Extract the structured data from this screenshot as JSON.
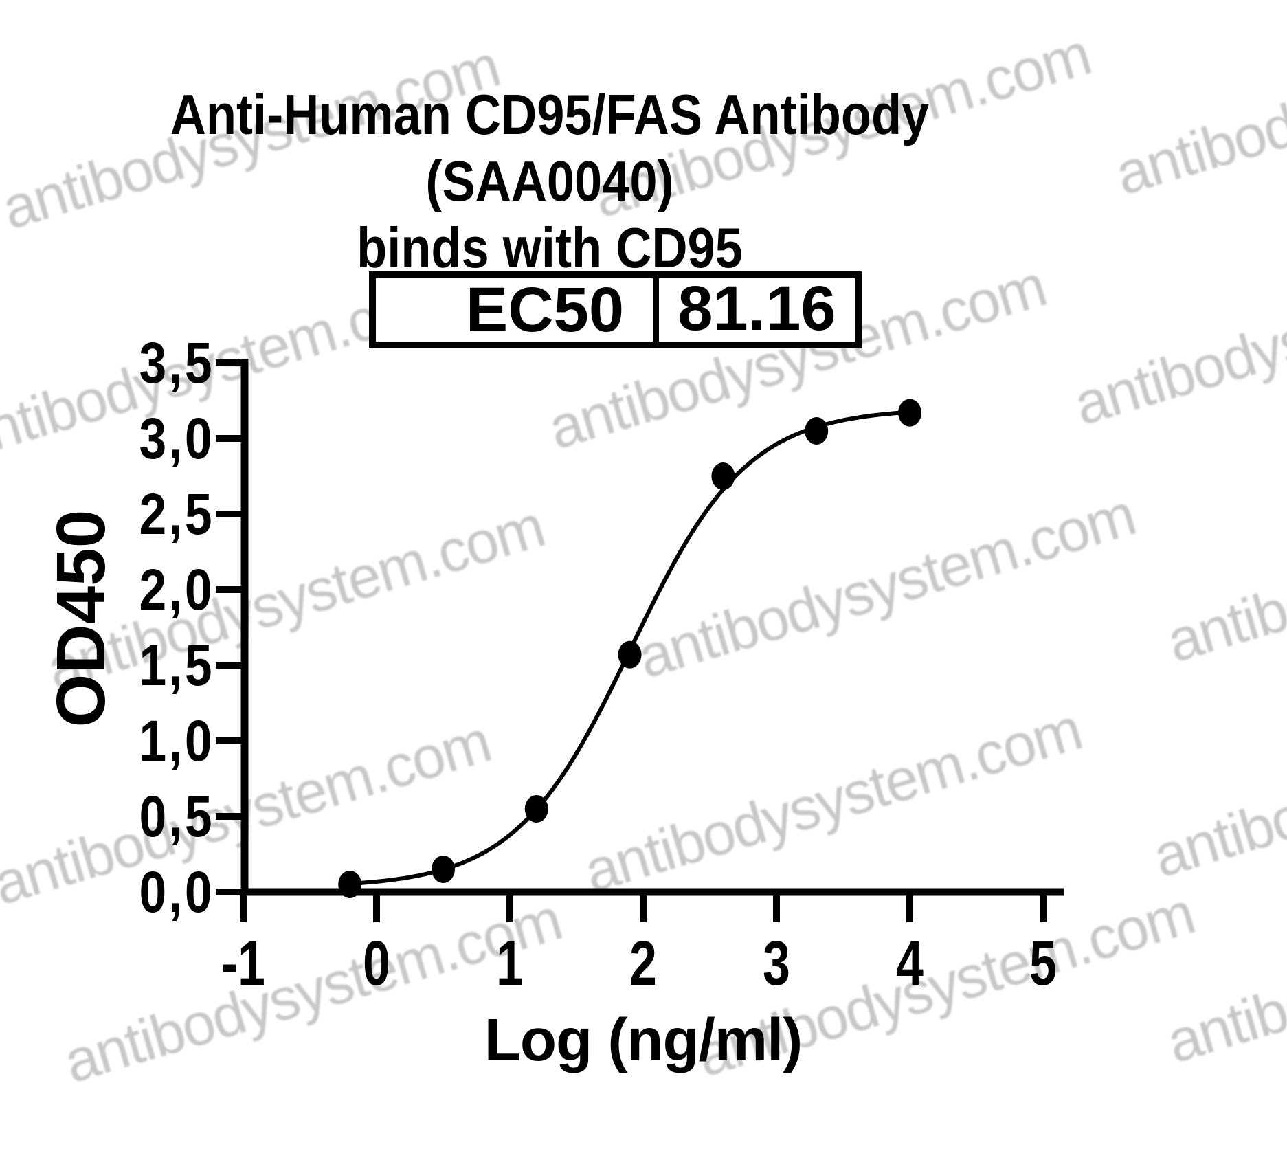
{
  "title": {
    "line1": "Anti-Human CD95/FAS Antibody (SAA0040)",
    "line2": "binds with CD95"
  },
  "watermark": {
    "text": "antibodysystem.com",
    "color": "#c7c7c7"
  },
  "chart_data": {
    "type": "scatter",
    "title": "Anti-Human CD95/FAS Antibody (SAA0040) binds with CD95",
    "xlabel": "Log (ng/ml)",
    "ylabel": "OD450",
    "xlim": [
      -1,
      5
    ],
    "ylim": [
      0.0,
      3.5
    ],
    "xticks": [
      -1,
      0,
      1,
      2,
      3,
      4,
      5
    ],
    "xtick_labels": [
      "-1",
      "0",
      "1",
      "2",
      "3",
      "4",
      "5"
    ],
    "yticks": [
      0.0,
      0.5,
      1.0,
      1.5,
      2.0,
      2.5,
      3.0,
      3.5
    ],
    "ytick_labels": [
      "0,0",
      "0,5",
      "1,0",
      "1,5",
      "2,0",
      "2,5",
      "3,0",
      "3,5"
    ],
    "grid": false,
    "legend_position": "none",
    "series": [
      {
        "x": [
          -0.2,
          0.5,
          1.2,
          1.9,
          2.6,
          3.3,
          4.0
        ],
        "y": [
          0.05,
          0.15,
          0.55,
          1.57,
          2.75,
          3.05,
          3.17
        ]
      }
    ],
    "fit": {
      "model": "4PL sigmoidal dose-response",
      "bottom": 0.03,
      "top": 3.2,
      "logEC50": 1.91,
      "hill": 1.0,
      "curve_x_range": [
        -0.2,
        4.0
      ]
    },
    "ec50": {
      "label": "EC50",
      "value": "81.16"
    },
    "colors": {
      "curve": "#000000",
      "points": "#000000",
      "axis": "#000000"
    }
  }
}
